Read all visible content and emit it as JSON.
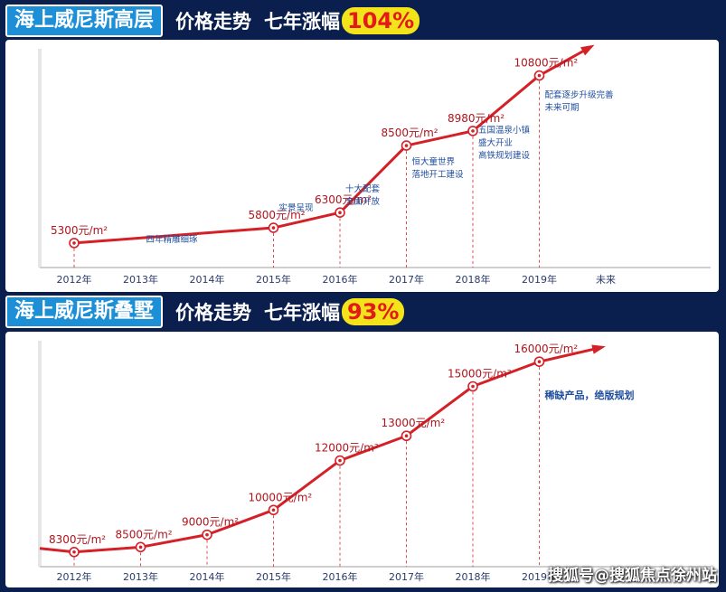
{
  "top": {
    "name": "海上威尼斯高层",
    "title": "价格走势",
    "rise_label": "七年涨幅",
    "rise_value": "104%"
  },
  "bottom": {
    "name": "海上威尼斯叠墅",
    "title": "价格走势",
    "rise_label": "七年涨幅",
    "rise_value": "93%"
  },
  "watermark": "搜狐号@搜狐焦点徐州站",
  "colors": {
    "line": "#d42027",
    "accent": "#1d8fd6",
    "badge": "#f3e31a",
    "note": "#1f4e9c"
  },
  "chart_data": [
    {
      "type": "line",
      "x": [
        "2012年",
        "2013年",
        "2014年",
        "2015年",
        "2016年",
        "2017年",
        "2018年",
        "2019年",
        "未来"
      ],
      "points": [
        {
          "x": "2012年",
          "y": 5300,
          "label": "5300元/m²"
        },
        {
          "x": "2015年",
          "y": 5800,
          "label": "5800元/m²"
        },
        {
          "x": "2016年",
          "y": 6300,
          "label": "6300元/m²"
        },
        {
          "x": "2017年",
          "y": 8500,
          "label": "8500元/m²"
        },
        {
          "x": "2018年",
          "y": 8980,
          "label": "8980元/m²"
        },
        {
          "x": "2019年",
          "y": 10800,
          "label": "10800元/m²"
        }
      ],
      "annotations": [
        {
          "x": "2013年",
          "lines": [
            "四年精雕细琢"
          ]
        },
        {
          "x": "2015年",
          "lines": [
            "实景呈现"
          ]
        },
        {
          "x": "2016年",
          "lines": [
            "十大配套",
            "全面开放"
          ]
        },
        {
          "x": "2017年",
          "lines": [
            "恒大童世界",
            "落地开工建设"
          ]
        },
        {
          "x": "2018年",
          "lines": [
            "五国温泉小镇",
            "盛大开业",
            "高铁规划建设"
          ]
        },
        {
          "x": "2019年",
          "lines": [
            "配套逐步升级完善",
            "未来可期"
          ]
        }
      ]
    },
    {
      "type": "line",
      "x": [
        "2012年",
        "2013年",
        "2014年",
        "2015年",
        "2016年",
        "2017年",
        "2018年",
        "2019年"
      ],
      "points": [
        {
          "x": "2012年",
          "y": 8300,
          "label": "8300元/m²"
        },
        {
          "x": "2013年",
          "y": 8500,
          "label": "8500元/m²"
        },
        {
          "x": "2014年",
          "y": 9000,
          "label": "9000元/m²"
        },
        {
          "x": "2015年",
          "y": 10000,
          "label": "10000元/m²"
        },
        {
          "x": "2016年",
          "y": 12000,
          "label": "12000元/m²"
        },
        {
          "x": "2017年",
          "y": 13000,
          "label": "13000元/m²"
        },
        {
          "x": "2018年",
          "y": 15000,
          "label": "15000元/m²"
        },
        {
          "x": "2019年",
          "y": 16000,
          "label": "16000元/m²"
        }
      ],
      "annotations": [
        {
          "x": "2019年",
          "lines": [
            "稀缺产品，绝版规划"
          ]
        }
      ]
    }
  ]
}
